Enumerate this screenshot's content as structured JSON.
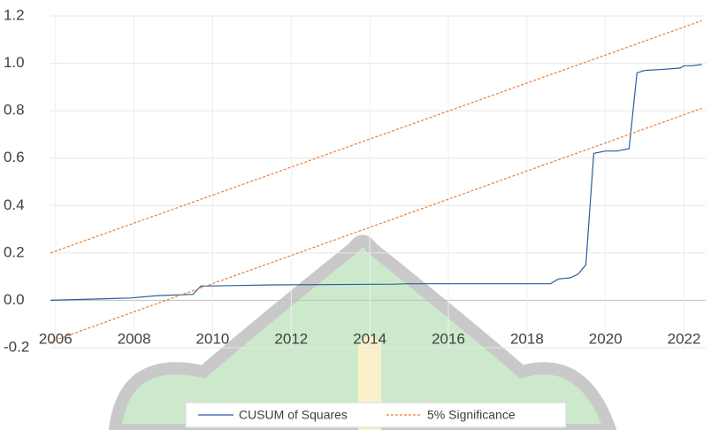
{
  "chart_data": {
    "type": "line",
    "xlim": [
      2005.87,
      2022.55
    ],
    "xticks": [
      2006,
      2008,
      2010,
      2012,
      2014,
      2016,
      2018,
      2020,
      2022
    ],
    "ylim": [
      -0.2,
      1.2
    ],
    "yticks": [
      {
        "value": -0.2,
        "label": "-0.2"
      },
      {
        "value": 0,
        "label": "0.0"
      },
      0.2,
      0.4,
      0.6,
      0.8,
      {
        "value": 1,
        "label": "1.0"
      },
      1.2
    ],
    "grid": true,
    "legend": "bottom",
    "series": [
      {
        "name": "CUSUM of Squares",
        "color": "#2e5c9e",
        "x": [
          2005.87,
          2006.9,
          2007.9,
          2008.6,
          2009.5,
          2009.7,
          2010.5,
          2011.5,
          2014.6,
          2015.0,
          2018.6,
          2018.8,
          2019.1,
          2019.3,
          2019.5,
          2019.7,
          2020.0,
          2020.3,
          2020.6,
          2020.8,
          2021.0,
          2021.5,
          2021.9,
          2022.0,
          2022.2,
          2022.45
        ],
        "values": [
          0,
          0.005,
          0.01,
          0.02,
          0.025,
          0.06,
          0.062,
          0.065,
          0.068,
          0.07,
          0.07,
          0.09,
          0.095,
          0.11,
          0.15,
          0.62,
          0.63,
          0.63,
          0.64,
          0.96,
          0.97,
          0.975,
          0.98,
          0.99,
          0.99,
          0.995
        ]
      },
      {
        "name": "5% Significance",
        "color": "#ed7d31",
        "dashed": true,
        "x": [
          2005.87,
          2022.45
        ],
        "upper": [
          0.2,
          1.18
        ],
        "lower": [
          -0.175,
          0.81
        ]
      }
    ]
  }
}
